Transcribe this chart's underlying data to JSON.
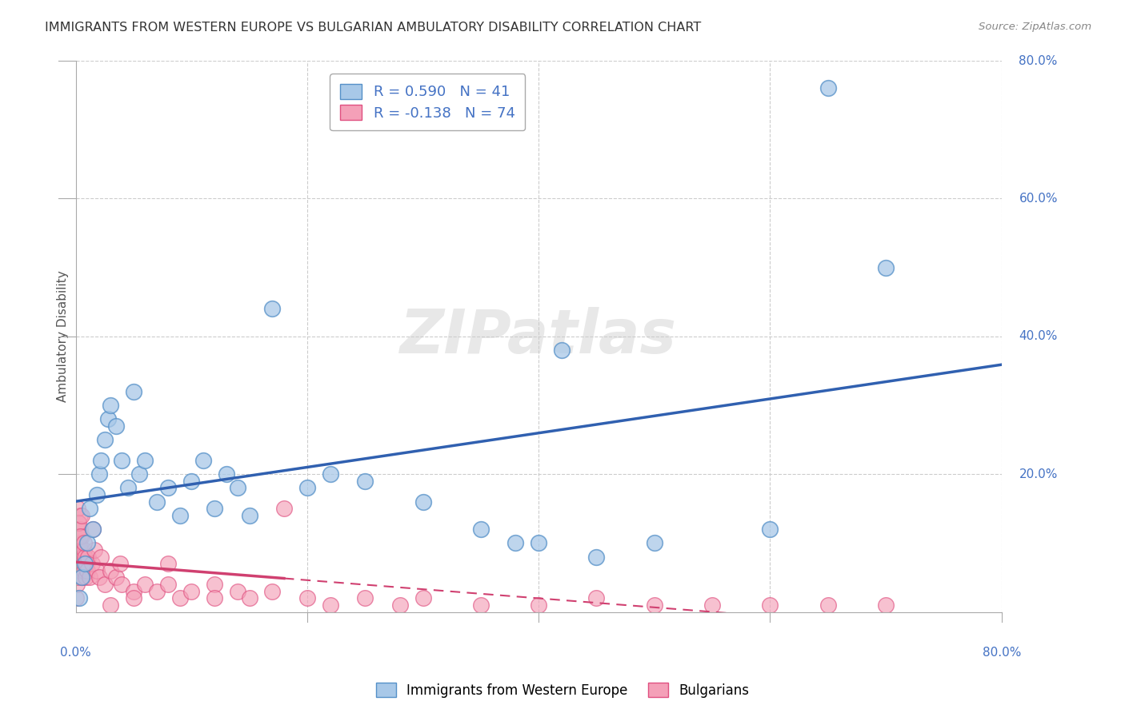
{
  "title": "IMMIGRANTS FROM WESTERN EUROPE VS BULGARIAN AMBULATORY DISABILITY CORRELATION CHART",
  "source": "Source: ZipAtlas.com",
  "ylabel": "Ambulatory Disability",
  "legend_blue_r": "R = 0.590",
  "legend_blue_n": "N = 41",
  "legend_pink_r": "R = -0.138",
  "legend_pink_n": "N = 74",
  "watermark": "ZIPatlas",
  "blue_color": "#a8c8e8",
  "pink_color": "#f4a0b8",
  "blue_edge_color": "#5590c8",
  "pink_edge_color": "#e05080",
  "blue_line_color": "#3060b0",
  "pink_line_color": "#d04070",
  "blue_legend_color": "#5590c8",
  "legend_text_color": "#4472c4",
  "tick_color": "#4472c4",
  "grid_color": "#cccccc",
  "title_color": "#333333",
  "source_color": "#888888",
  "ylabel_color": "#555555",
  "blue_x": [
    0.3,
    0.5,
    0.8,
    1.0,
    1.2,
    1.5,
    1.8,
    2.0,
    2.2,
    2.5,
    2.8,
    3.0,
    3.5,
    4.0,
    4.5,
    5.0,
    5.5,
    6.0,
    7.0,
    8.0,
    9.0,
    10.0,
    11.0,
    12.0,
    13.0,
    14.0,
    15.0,
    17.0,
    20.0,
    25.0,
    30.0,
    35.0,
    40.0,
    45.0,
    50.0,
    60.0,
    65.0,
    70.0,
    42.0,
    38.0,
    22.0
  ],
  "blue_y": [
    2.0,
    5.0,
    7.0,
    10.0,
    15.0,
    12.0,
    17.0,
    20.0,
    22.0,
    25.0,
    28.0,
    30.0,
    27.0,
    22.0,
    18.0,
    32.0,
    20.0,
    22.0,
    16.0,
    18.0,
    14.0,
    19.0,
    22.0,
    15.0,
    20.0,
    18.0,
    14.0,
    44.0,
    18.0,
    19.0,
    16.0,
    12.0,
    10.0,
    8.0,
    10.0,
    12.0,
    76.0,
    50.0,
    38.0,
    10.0,
    20.0
  ],
  "pink_x": [
    0.05,
    0.08,
    0.1,
    0.12,
    0.15,
    0.18,
    0.2,
    0.22,
    0.25,
    0.28,
    0.3,
    0.32,
    0.35,
    0.38,
    0.4,
    0.42,
    0.45,
    0.48,
    0.5,
    0.55,
    0.6,
    0.65,
    0.7,
    0.75,
    0.8,
    0.85,
    0.9,
    1.0,
    1.1,
    1.2,
    1.4,
    1.6,
    1.8,
    2.0,
    2.5,
    3.0,
    3.5,
    4.0,
    5.0,
    6.0,
    7.0,
    8.0,
    9.0,
    10.0,
    12.0,
    14.0,
    15.0,
    17.0,
    20.0,
    22.0,
    25.0,
    28.0,
    30.0,
    35.0,
    40.0,
    45.0,
    50.0,
    55.0,
    60.0,
    65.0,
    70.0,
    0.15,
    0.25,
    0.35,
    0.5,
    0.7,
    1.5,
    2.2,
    3.8,
    18.0,
    12.0,
    8.0,
    5.0,
    3.0
  ],
  "pink_y": [
    2.0,
    4.0,
    6.0,
    8.0,
    10.0,
    7.0,
    5.0,
    9.0,
    12.0,
    8.0,
    6.0,
    10.0,
    14.0,
    8.0,
    12.0,
    7.0,
    9.0,
    11.0,
    6.0,
    8.0,
    5.0,
    7.0,
    9.0,
    6.0,
    8.0,
    5.0,
    7.0,
    6.0,
    8.0,
    5.0,
    7.0,
    9.0,
    6.0,
    5.0,
    4.0,
    6.0,
    5.0,
    4.0,
    3.0,
    4.0,
    3.0,
    4.0,
    2.0,
    3.0,
    4.0,
    3.0,
    2.0,
    3.0,
    2.0,
    1.0,
    2.0,
    1.0,
    2.0,
    1.0,
    1.0,
    2.0,
    1.0,
    1.0,
    1.0,
    1.0,
    1.0,
    15.0,
    13.0,
    11.0,
    14.0,
    10.0,
    12.0,
    8.0,
    7.0,
    15.0,
    2.0,
    7.0,
    2.0,
    1.0
  ]
}
